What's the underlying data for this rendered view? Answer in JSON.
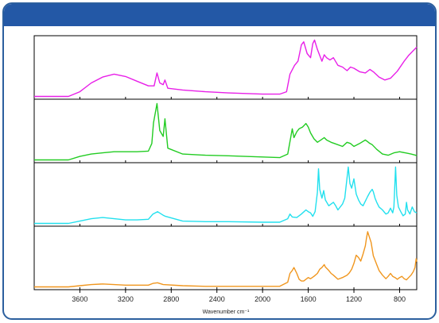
{
  "chart_data": {
    "type": "line",
    "xlabel": "Wavenumber cm⁻¹",
    "x_reversed": true,
    "xlim": [
      4000,
      650
    ],
    "xticks": [
      3600,
      3200,
      2800,
      2400,
      2000,
      1600,
      1200,
      800
    ],
    "ylim": [
      0,
      1
    ],
    "y_ticks_shown": false,
    "stacked_panels": 4,
    "panels": [
      {
        "color": "#e81fe8",
        "points": [
          [
            4000,
            0.02
          ],
          [
            3700,
            0.02
          ],
          [
            3600,
            0.1
          ],
          [
            3500,
            0.25
          ],
          [
            3400,
            0.35
          ],
          [
            3300,
            0.4
          ],
          [
            3200,
            0.36
          ],
          [
            3100,
            0.28
          ],
          [
            3000,
            0.2
          ],
          [
            2950,
            0.2
          ],
          [
            2925,
            0.42
          ],
          [
            2900,
            0.25
          ],
          [
            2870,
            0.22
          ],
          [
            2855,
            0.3
          ],
          [
            2830,
            0.16
          ],
          [
            2700,
            0.13
          ],
          [
            2500,
            0.1
          ],
          [
            2300,
            0.08
          ],
          [
            2000,
            0.06
          ],
          [
            1850,
            0.06
          ],
          [
            1790,
            0.1
          ],
          [
            1760,
            0.4
          ],
          [
            1720,
            0.55
          ],
          [
            1690,
            0.62
          ],
          [
            1660,
            0.9
          ],
          [
            1640,
            0.95
          ],
          [
            1610,
            0.75
          ],
          [
            1580,
            0.68
          ],
          [
            1560,
            0.92
          ],
          [
            1545,
            0.98
          ],
          [
            1520,
            0.82
          ],
          [
            1480,
            0.62
          ],
          [
            1460,
            0.73
          ],
          [
            1440,
            0.68
          ],
          [
            1410,
            0.64
          ],
          [
            1380,
            0.68
          ],
          [
            1340,
            0.55
          ],
          [
            1300,
            0.52
          ],
          [
            1260,
            0.46
          ],
          [
            1230,
            0.52
          ],
          [
            1200,
            0.5
          ],
          [
            1150,
            0.44
          ],
          [
            1100,
            0.42
          ],
          [
            1060,
            0.48
          ],
          [
            1030,
            0.44
          ],
          [
            980,
            0.35
          ],
          [
            930,
            0.3
          ],
          [
            880,
            0.33
          ],
          [
            820,
            0.45
          ],
          [
            760,
            0.62
          ],
          [
            720,
            0.72
          ],
          [
            680,
            0.8
          ],
          [
            650,
            0.86
          ]
        ]
      },
      {
        "color": "#22cc22",
        "points": [
          [
            4000,
            0.02
          ],
          [
            3700,
            0.02
          ],
          [
            3600,
            0.08
          ],
          [
            3500,
            0.12
          ],
          [
            3400,
            0.14
          ],
          [
            3300,
            0.16
          ],
          [
            3200,
            0.16
          ],
          [
            3100,
            0.16
          ],
          [
            3000,
            0.17
          ],
          [
            2970,
            0.3
          ],
          [
            2955,
            0.65
          ],
          [
            2925,
            0.98
          ],
          [
            2900,
            0.52
          ],
          [
            2870,
            0.42
          ],
          [
            2855,
            0.72
          ],
          [
            2830,
            0.22
          ],
          [
            2700,
            0.12
          ],
          [
            2500,
            0.1
          ],
          [
            2300,
            0.09
          ],
          [
            2000,
            0.07
          ],
          [
            1850,
            0.06
          ],
          [
            1780,
            0.12
          ],
          [
            1740,
            0.55
          ],
          [
            1725,
            0.4
          ],
          [
            1700,
            0.5
          ],
          [
            1680,
            0.55
          ],
          [
            1650,
            0.58
          ],
          [
            1620,
            0.64
          ],
          [
            1600,
            0.58
          ],
          [
            1580,
            0.48
          ],
          [
            1550,
            0.38
          ],
          [
            1520,
            0.32
          ],
          [
            1490,
            0.36
          ],
          [
            1460,
            0.4
          ],
          [
            1440,
            0.36
          ],
          [
            1400,
            0.32
          ],
          [
            1370,
            0.3
          ],
          [
            1300,
            0.25
          ],
          [
            1260,
            0.32
          ],
          [
            1230,
            0.3
          ],
          [
            1200,
            0.25
          ],
          [
            1150,
            0.3
          ],
          [
            1100,
            0.36
          ],
          [
            1080,
            0.33
          ],
          [
            1060,
            0.3
          ],
          [
            1040,
            0.28
          ],
          [
            1000,
            0.2
          ],
          [
            950,
            0.12
          ],
          [
            900,
            0.1
          ],
          [
            850,
            0.14
          ],
          [
            800,
            0.16
          ],
          [
            750,
            0.14
          ],
          [
            700,
            0.12
          ],
          [
            660,
            0.1
          ],
          [
            650,
            0.09
          ]
        ]
      },
      {
        "color": "#22e0ee",
        "points": [
          [
            4000,
            0.02
          ],
          [
            3700,
            0.02
          ],
          [
            3600,
            0.06
          ],
          [
            3500,
            0.1
          ],
          [
            3400,
            0.12
          ],
          [
            3300,
            0.1
          ],
          [
            3200,
            0.08
          ],
          [
            3100,
            0.08
          ],
          [
            3000,
            0.09
          ],
          [
            2960,
            0.18
          ],
          [
            2920,
            0.22
          ],
          [
            2870,
            0.16
          ],
          [
            2850,
            0.14
          ],
          [
            2700,
            0.06
          ],
          [
            2500,
            0.05
          ],
          [
            2300,
            0.05
          ],
          [
            2000,
            0.04
          ],
          [
            1850,
            0.04
          ],
          [
            1780,
            0.1
          ],
          [
            1760,
            0.18
          ],
          [
            1740,
            0.13
          ],
          [
            1700,
            0.12
          ],
          [
            1660,
            0.18
          ],
          [
            1620,
            0.25
          ],
          [
            1600,
            0.22
          ],
          [
            1580,
            0.2
          ],
          [
            1560,
            0.14
          ],
          [
            1540,
            0.22
          ],
          [
            1520,
            0.55
          ],
          [
            1510,
            0.95
          ],
          [
            1500,
            0.6
          ],
          [
            1480,
            0.45
          ],
          [
            1465,
            0.58
          ],
          [
            1450,
            0.42
          ],
          [
            1420,
            0.32
          ],
          [
            1400,
            0.35
          ],
          [
            1380,
            0.38
          ],
          [
            1360,
            0.32
          ],
          [
            1340,
            0.25
          ],
          [
            1300,
            0.35
          ],
          [
            1280,
            0.45
          ],
          [
            1250,
            0.98
          ],
          [
            1235,
            0.7
          ],
          [
            1220,
            0.62
          ],
          [
            1200,
            0.78
          ],
          [
            1180,
            0.52
          ],
          [
            1160,
            0.42
          ],
          [
            1140,
            0.35
          ],
          [
            1120,
            0.32
          ],
          [
            1100,
            0.4
          ],
          [
            1080,
            0.48
          ],
          [
            1060,
            0.55
          ],
          [
            1040,
            0.6
          ],
          [
            1030,
            0.56
          ],
          [
            1015,
            0.45
          ],
          [
            1000,
            0.38
          ],
          [
            980,
            0.3
          ],
          [
            950,
            0.25
          ],
          [
            920,
            0.18
          ],
          [
            900,
            0.2
          ],
          [
            880,
            0.28
          ],
          [
            860,
            0.2
          ],
          [
            850,
            0.3
          ],
          [
            835,
            0.98
          ],
          [
            825,
            0.5
          ],
          [
            810,
            0.3
          ],
          [
            790,
            0.22
          ],
          [
            770,
            0.15
          ],
          [
            750,
            0.18
          ],
          [
            740,
            0.38
          ],
          [
            730,
            0.25
          ],
          [
            710,
            0.18
          ],
          [
            690,
            0.3
          ],
          [
            670,
            0.22
          ],
          [
            650,
            0.2
          ]
        ]
      },
      {
        "color": "#f0961e",
        "points": [
          [
            4000,
            0.02
          ],
          [
            3700,
            0.02
          ],
          [
            3600,
            0.04
          ],
          [
            3500,
            0.06
          ],
          [
            3400,
            0.07
          ],
          [
            3300,
            0.06
          ],
          [
            3200,
            0.05
          ],
          [
            3100,
            0.05
          ],
          [
            3000,
            0.05
          ],
          [
            2960,
            0.08
          ],
          [
            2920,
            0.09
          ],
          [
            2870,
            0.06
          ],
          [
            2700,
            0.04
          ],
          [
            2500,
            0.03
          ],
          [
            2300,
            0.03
          ],
          [
            2000,
            0.03
          ],
          [
            1850,
            0.03
          ],
          [
            1780,
            0.1
          ],
          [
            1760,
            0.25
          ],
          [
            1740,
            0.3
          ],
          [
            1725,
            0.35
          ],
          [
            1700,
            0.25
          ],
          [
            1680,
            0.15
          ],
          [
            1660,
            0.12
          ],
          [
            1640,
            0.12
          ],
          [
            1600,
            0.18
          ],
          [
            1580,
            0.16
          ],
          [
            1550,
            0.2
          ],
          [
            1520,
            0.25
          ],
          [
            1500,
            0.32
          ],
          [
            1480,
            0.35
          ],
          [
            1460,
            0.4
          ],
          [
            1450,
            0.36
          ],
          [
            1420,
            0.3
          ],
          [
            1400,
            0.25
          ],
          [
            1380,
            0.22
          ],
          [
            1340,
            0.15
          ],
          [
            1300,
            0.18
          ],
          [
            1280,
            0.2
          ],
          [
            1260,
            0.22
          ],
          [
            1240,
            0.26
          ],
          [
            1220,
            0.32
          ],
          [
            1200,
            0.42
          ],
          [
            1180,
            0.56
          ],
          [
            1160,
            0.52
          ],
          [
            1140,
            0.46
          ],
          [
            1120,
            0.58
          ],
          [
            1100,
            0.72
          ],
          [
            1090,
            0.85
          ],
          [
            1080,
            0.96
          ],
          [
            1070,
            0.9
          ],
          [
            1050,
            0.78
          ],
          [
            1030,
            0.55
          ],
          [
            1000,
            0.4
          ],
          [
            980,
            0.3
          ],
          [
            950,
            0.22
          ],
          [
            920,
            0.16
          ],
          [
            900,
            0.2
          ],
          [
            880,
            0.25
          ],
          [
            860,
            0.2
          ],
          [
            840,
            0.18
          ],
          [
            820,
            0.15
          ],
          [
            800,
            0.18
          ],
          [
            780,
            0.2
          ],
          [
            760,
            0.16
          ],
          [
            740,
            0.14
          ],
          [
            720,
            0.18
          ],
          [
            700,
            0.22
          ],
          [
            680,
            0.28
          ],
          [
            665,
            0.35
          ],
          [
            655,
            0.5
          ],
          [
            650,
            0.45
          ]
        ]
      }
    ]
  }
}
